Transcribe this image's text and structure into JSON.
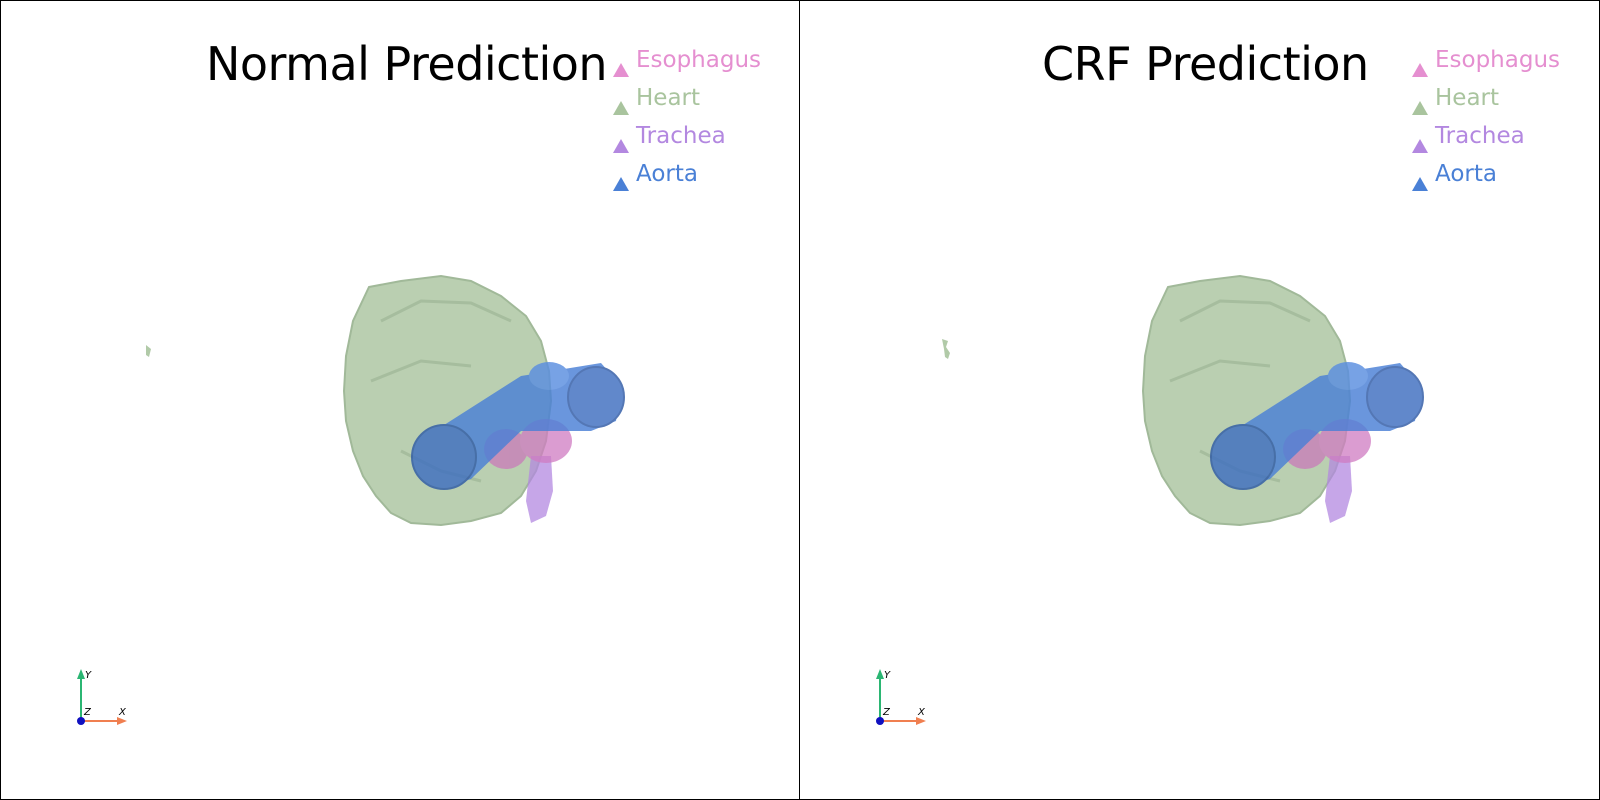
{
  "panels": [
    {
      "title": "Normal Prediction"
    },
    {
      "title": "CRF Prediction"
    }
  ],
  "legend": [
    {
      "label": "Esophagus",
      "color": "#e58fd0"
    },
    {
      "label": "Heart",
      "color": "#a9c49e"
    },
    {
      "label": "Trachea",
      "color": "#b388e0"
    },
    {
      "label": "Aorta",
      "color": "#4a80d6"
    }
  ],
  "axes": {
    "y": "Y",
    "z": "Z",
    "x": "X",
    "x_color": "#f07f50",
    "y_color": "#2bb673",
    "z_color": "#1010c0"
  },
  "icons": {
    "legend_marker": "triangle-icon"
  }
}
